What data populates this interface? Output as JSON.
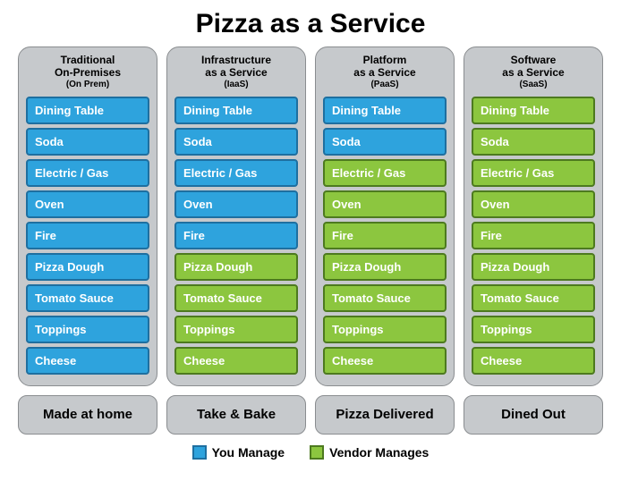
{
  "title": "Pizza as a Service",
  "colors": {
    "you_fill": "#2ea3dd",
    "you_border": "#1e6fa0",
    "vendor_fill": "#8cc63f",
    "vendor_border": "#4d7a1f",
    "panel_bg": "#c6c9cc",
    "panel_border": "#8a8d90"
  },
  "layers": [
    "Dining Table",
    "Soda",
    "Electric / Gas",
    "Oven",
    "Fire",
    "Pizza Dough",
    "Tomato Sauce",
    "Toppings",
    "Cheese"
  ],
  "columns": [
    {
      "head1": "Traditional",
      "head2": "On-Premises",
      "head3": "(On Prem)",
      "who": [
        "you",
        "you",
        "you",
        "you",
        "you",
        "you",
        "you",
        "you",
        "you"
      ],
      "footer": "Made at home"
    },
    {
      "head1": "Infrastructure",
      "head2": "as a Service",
      "head3": "(IaaS)",
      "who": [
        "you",
        "you",
        "you",
        "you",
        "you",
        "vendor",
        "vendor",
        "vendor",
        "vendor"
      ],
      "footer": "Take & Bake"
    },
    {
      "head1": "Platform",
      "head2": "as a Service",
      "head3": "(PaaS)",
      "who": [
        "you",
        "you",
        "vendor",
        "vendor",
        "vendor",
        "vendor",
        "vendor",
        "vendor",
        "vendor"
      ],
      "footer": "Pizza Delivered"
    },
    {
      "head1": "Software",
      "head2": "as a Service",
      "head3": "(SaaS)",
      "who": [
        "vendor",
        "vendor",
        "vendor",
        "vendor",
        "vendor",
        "vendor",
        "vendor",
        "vendor",
        "vendor"
      ],
      "footer": "Dined Out"
    }
  ],
  "legend": {
    "you": "You Manage",
    "vendor": "Vendor Manages"
  }
}
